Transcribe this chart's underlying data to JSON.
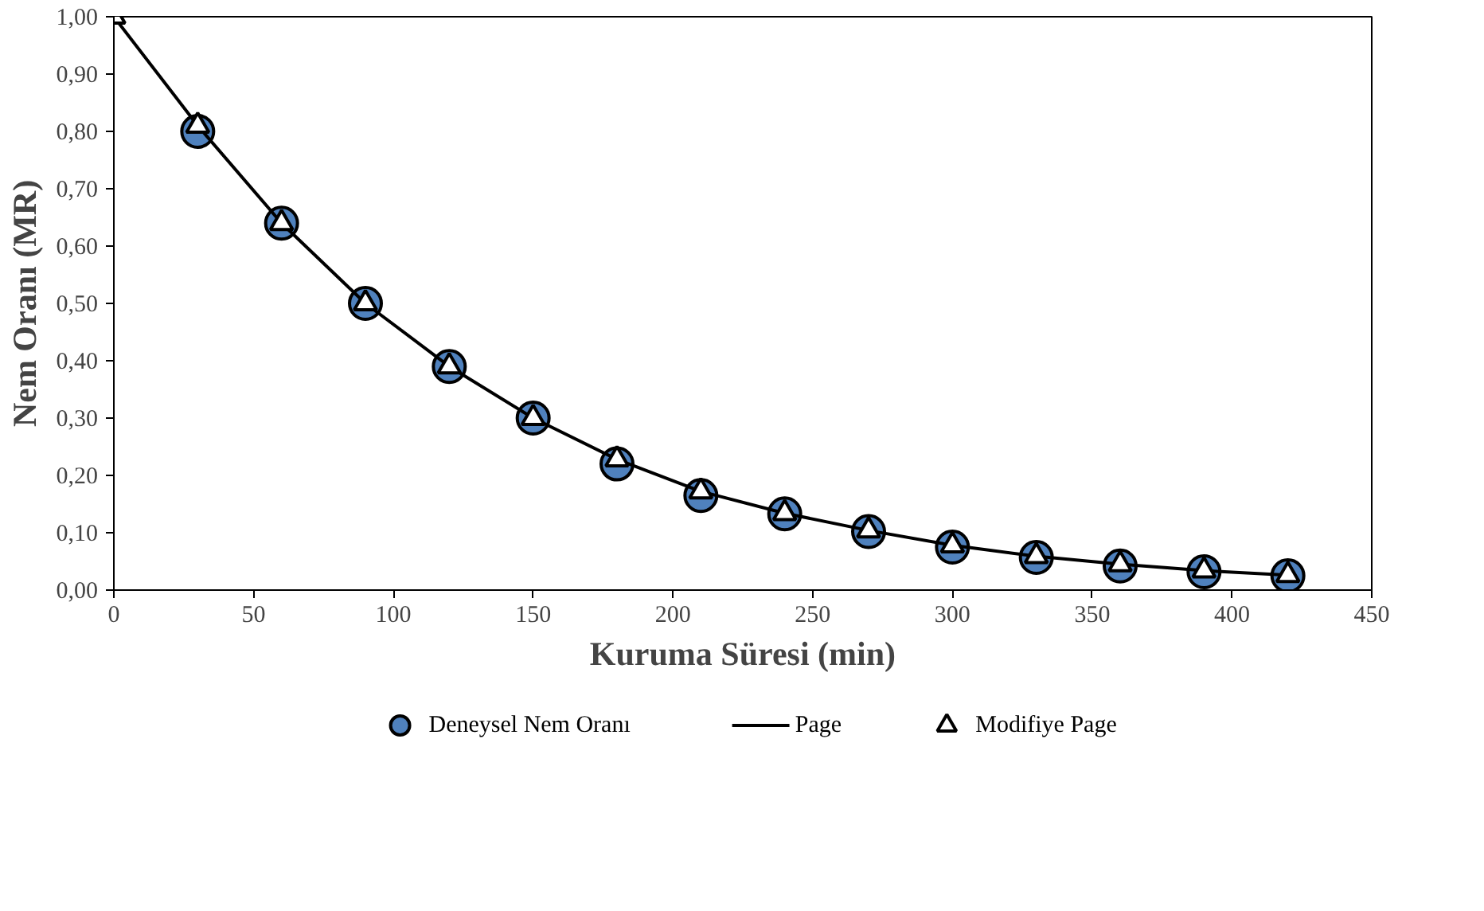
{
  "chart_data": {
    "type": "scatter",
    "xlabel": "Kuruma Süresi (min)",
    "ylabel": "Nem Oranı (MR)",
    "x": [
      0,
      30,
      60,
      90,
      120,
      150,
      180,
      210,
      240,
      270,
      300,
      330,
      360,
      390,
      420
    ],
    "xlim": [
      0,
      450
    ],
    "xticks": [
      0,
      50,
      100,
      150,
      200,
      250,
      300,
      350,
      400,
      450
    ],
    "ylim": [
      0,
      1
    ],
    "yticks": [
      {
        "value": 0,
        "label": "0,00"
      },
      {
        "value": 0.1,
        "label": "0,10"
      },
      {
        "value": 0.2,
        "label": "0,20"
      },
      {
        "value": 0.3,
        "label": "0,30"
      },
      {
        "value": 0.4,
        "label": "0,40"
      },
      {
        "value": 0.5,
        "label": "0,50"
      },
      {
        "value": 0.6,
        "label": "0,60"
      },
      {
        "value": 0.7,
        "label": "0,70"
      },
      {
        "value": 0.8,
        "label": "0,80"
      },
      {
        "value": 0.9,
        "label": "0,90"
      },
      {
        "value": 1,
        "label": "1,00"
      }
    ],
    "grid": false,
    "legend": "bottom",
    "series": [
      {
        "name": "Deneysel Nem Oranı",
        "marker": "circle",
        "color": "#4f81bd",
        "values": [
          null,
          0.8,
          0.64,
          0.5,
          0.39,
          0.3,
          0.22,
          0.165,
          0.133,
          0.102,
          0.075,
          0.057,
          0.042,
          0.032,
          0.025
        ]
      },
      {
        "name": "Page",
        "type": "line",
        "line_style": "solid",
        "color": "#000000",
        "values": [
          1.0,
          0.81,
          0.64,
          0.5,
          0.39,
          0.3,
          0.228,
          0.172,
          0.134,
          0.104,
          0.078,
          0.059,
          0.045,
          0.034,
          0.026
        ]
      },
      {
        "name": "Modifiye Page",
        "marker": "triangle",
        "color": "#ffffff",
        "values": [
          1.0,
          0.81,
          0.64,
          0.5,
          0.39,
          0.3,
          0.228,
          0.172,
          0.134,
          0.104,
          0.078,
          0.059,
          0.045,
          0.034,
          0.026
        ]
      }
    ]
  }
}
